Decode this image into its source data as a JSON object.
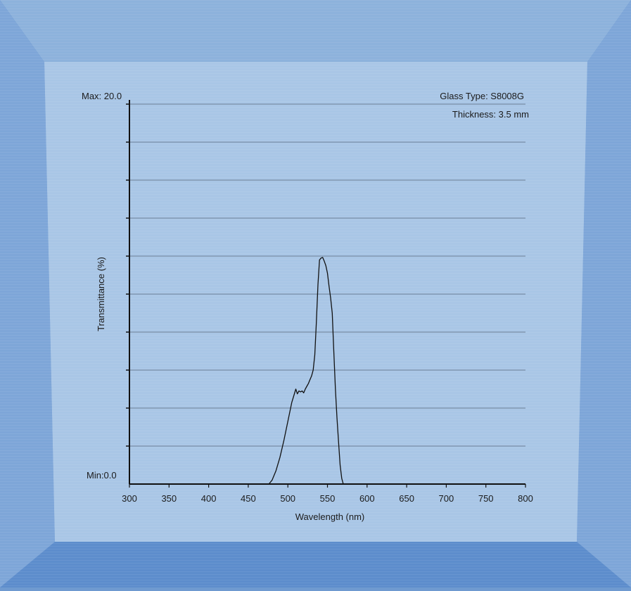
{
  "colors": {
    "frame_outer": "#5d8dcc",
    "frame_top": "#8db2dc",
    "frame_side": "#7ea6d8",
    "panel": "#a9c6e6",
    "gridline": "#6b7f95",
    "axis": "#111111",
    "curve": "#111111"
  },
  "chart_data": {
    "type": "line",
    "ylabel": "Transmittance (%)",
    "xlabel": "Wavelength (nm)",
    "y_max_label": "Max: 20.0",
    "y_min_label": "Min:0.0",
    "annotations": [
      "Glass Type: S8008G",
      "Thickness: 3.5 mm"
    ],
    "xlim": [
      300,
      800
    ],
    "ylim": [
      0,
      20
    ],
    "x_ticks": [
      300,
      350,
      400,
      450,
      500,
      550,
      600,
      650,
      700,
      750,
      800
    ],
    "x_tick_labels": [
      "300",
      "350",
      "400",
      "450",
      "500",
      "550",
      "600",
      "650",
      "700",
      "750",
      "800"
    ],
    "y_gridlines": [
      2,
      4,
      6,
      8,
      10,
      12,
      14,
      16,
      18,
      20
    ],
    "grid": true,
    "series": [
      {
        "x": [
          300,
          470,
          476,
          480,
          485,
          490,
          495,
          500,
          505,
          510,
          512,
          514,
          516,
          518,
          520,
          522,
          524,
          526,
          528,
          530,
          532,
          534,
          536,
          538,
          540,
          542,
          544,
          546,
          548,
          550,
          552,
          554,
          556,
          558,
          560,
          562,
          564,
          566,
          568,
          570,
          572,
          574,
          576,
          578,
          800
        ],
        "y": [
          0,
          0,
          0,
          0.2,
          0.7,
          1.4,
          2.3,
          3.3,
          4.3,
          5.0,
          4.75,
          4.9,
          4.85,
          4.9,
          4.8,
          5.0,
          5.15,
          5.3,
          5.5,
          5.7,
          6.0,
          6.8,
          8.5,
          10.5,
          11.8,
          11.9,
          11.93,
          11.73,
          11.5,
          11.1,
          10.4,
          9.8,
          9.0,
          7.0,
          5.0,
          3.5,
          2.2,
          1.0,
          0.3,
          0,
          0,
          0,
          0,
          0,
          0
        ]
      }
    ]
  }
}
